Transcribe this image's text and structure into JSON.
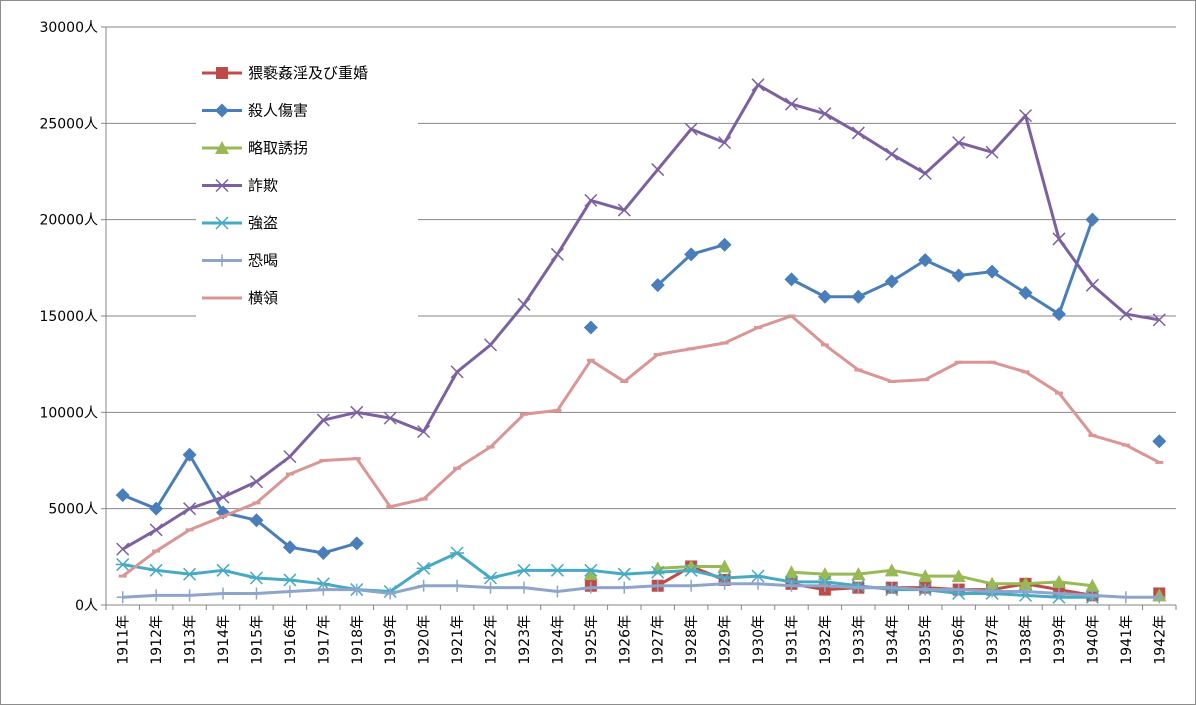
{
  "chart_data": {
    "type": "line",
    "title": "",
    "xlabel": "",
    "ylabel": "",
    "ylim": [
      0,
      30000
    ],
    "yticks": [
      "0人",
      "5000人",
      "10000人",
      "15000人",
      "20000人",
      "25000人",
      "30000人"
    ],
    "yticks_values": [
      0,
      5000,
      10000,
      15000,
      20000,
      25000,
      30000
    ],
    "grid": "horizontal",
    "legend_position": "top-left",
    "categories": [
      "1911年",
      "1912年",
      "1913年",
      "1914年",
      "1915年",
      "1916年",
      "1917年",
      "1918年",
      "1919年",
      "1920年",
      "1921年",
      "1922年",
      "1923年",
      "1924年",
      "1925年",
      "1926年",
      "1927年",
      "1928年",
      "1929年",
      "1930年",
      "1931年",
      "1932年",
      "1933年",
      "1934年",
      "1935年",
      "1936年",
      "1937年",
      "1938年",
      "1939年",
      "1940年",
      "1941年",
      "1942年"
    ],
    "series": [
      {
        "name": "猥褻姦淫及び重婚",
        "color": "#be4b48",
        "marker": "square",
        "values": [
          null,
          null,
          null,
          null,
          null,
          null,
          null,
          null,
          null,
          null,
          null,
          null,
          null,
          null,
          1000,
          null,
          1000,
          2000,
          1300,
          null,
          1100,
          800,
          900,
          900,
          900,
          800,
          800,
          1100,
          800,
          500,
          null,
          600
        ]
      },
      {
        "name": "殺人傷害",
        "color": "#4a7ebb",
        "marker": "diamond",
        "values": [
          5700,
          5000,
          7800,
          4800,
          4400,
          3000,
          2700,
          3200,
          null,
          null,
          null,
          null,
          null,
          null,
          14400,
          null,
          16600,
          18200,
          18700,
          null,
          16900,
          16000,
          16000,
          16800,
          17900,
          17100,
          17300,
          16200,
          15100,
          20000,
          null,
          8500
        ]
      },
      {
        "name": "略取誘拐",
        "color": "#98b954",
        "marker": "triangle",
        "values": [
          null,
          null,
          null,
          null,
          null,
          null,
          null,
          null,
          null,
          null,
          null,
          null,
          null,
          null,
          1600,
          null,
          1900,
          2000,
          2000,
          null,
          1700,
          1600,
          1600,
          1800,
          1500,
          1500,
          1100,
          1100,
          1200,
          1000,
          null,
          500
        ]
      },
      {
        "name": "詐欺",
        "color": "#7d60a0",
        "marker": "x",
        "values": [
          2900,
          3900,
          5000,
          5600,
          6400,
          7700,
          9600,
          10000,
          9700,
          9000,
          12100,
          13500,
          15600,
          18200,
          21000,
          20500,
          22600,
          24700,
          24000,
          27000,
          26000,
          25500,
          24500,
          23400,
          22400,
          24000,
          23500,
          25400,
          19000,
          16600,
          15100,
          14800
        ]
      },
      {
        "name": "強盗",
        "color": "#46aac4",
        "marker": "asterisk",
        "values": [
          2100,
          1800,
          1600,
          1800,
          1400,
          1300,
          1100,
          800,
          700,
          1900,
          2700,
          1400,
          1800,
          1800,
          1800,
          1600,
          1700,
          1800,
          1400,
          1500,
          1200,
          1200,
          1000,
          800,
          800,
          600,
          600,
          500,
          400,
          400,
          null,
          null
        ]
      },
      {
        "name": "恐喝",
        "color": "#8ea5cb",
        "marker": "plus",
        "values": [
          400,
          500,
          500,
          600,
          600,
          700,
          800,
          800,
          600,
          1000,
          1000,
          900,
          900,
          700,
          900,
          900,
          1000,
          1000,
          1100,
          1100,
          1000,
          1000,
          900,
          900,
          800,
          800,
          700,
          700,
          600,
          500,
          400,
          400
        ]
      },
      {
        "name": "横領",
        "color": "#d99694",
        "marker": "dash",
        "values": [
          1500,
          2800,
          3900,
          4600,
          5300,
          6800,
          7500,
          7600,
          5100,
          5500,
          7100,
          8200,
          9900,
          10100,
          12700,
          11600,
          13000,
          13300,
          13600,
          14400,
          15000,
          13500,
          12200,
          11600,
          11700,
          12600,
          12600,
          12100,
          11000,
          8800,
          8300,
          7400
        ]
      }
    ]
  }
}
